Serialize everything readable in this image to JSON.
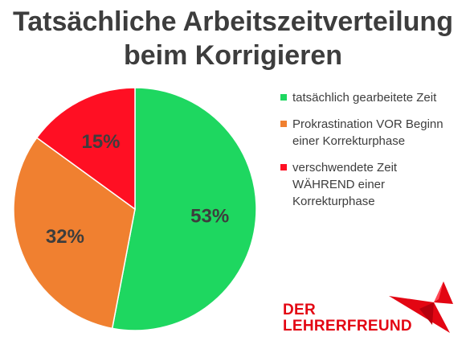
{
  "chart_data": {
    "type": "pie",
    "title": "Tatsächliche Arbeitszeitverteilung beim Korrigieren",
    "title_lines": [
      "Tatsächliche Arbeitszeitverteilung",
      "beim Korrigieren"
    ],
    "start_angle_deg": 0,
    "direction": "clockwise",
    "legend_position": "right",
    "slices": [
      {
        "label": "tatsächlich gearbeitete Zeit",
        "value": 53,
        "value_label": "53%",
        "color": "#1ed760"
      },
      {
        "label": "Prokrastination VOR Beginn einer Korrekturphase",
        "value": 32,
        "value_label": "32%",
        "color": "#f08030"
      },
      {
        "label": "verschwendete Zeit WÄHREND einer Korrekturphase",
        "value": 15,
        "value_label": "15%",
        "color": "#ff0f23"
      }
    ]
  },
  "legend": {
    "items": [
      {
        "label_lines": [
          "tatsächlich gearbeitete Zeit"
        ],
        "color": "#1ed760"
      },
      {
        "label_lines": [
          "Prokrastination VOR Beginn",
          "einer Korrekturphase"
        ],
        "color": "#f08030"
      },
      {
        "label_lines": [
          "verschwendete Zeit",
          "WÄHREND einer",
          "Korrekturphase"
        ],
        "color": "#ff0f23"
      }
    ]
  },
  "logo": {
    "lines": [
      "DER",
      "LEHRERFREUND"
    ],
    "color": "#e30613"
  },
  "colors": {
    "text": "#3d3d3d",
    "brand_red": "#e30613"
  }
}
